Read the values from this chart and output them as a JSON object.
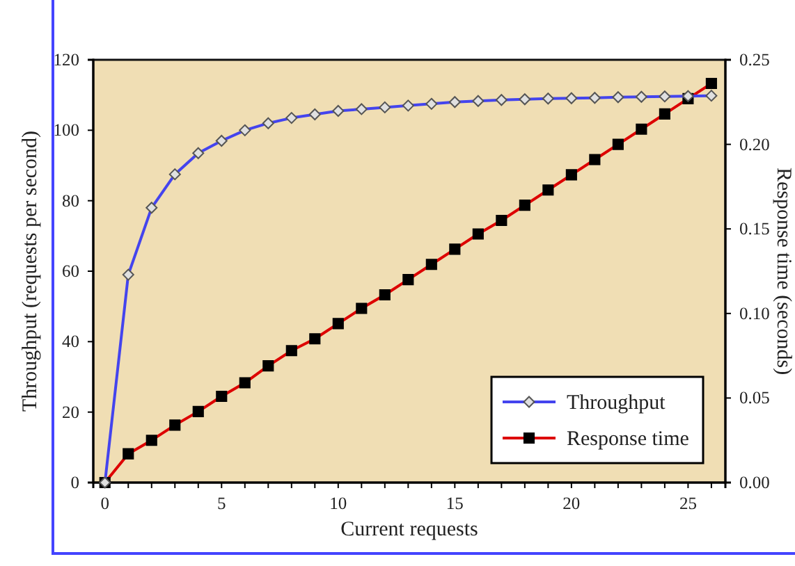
{
  "chart_data": {
    "type": "line",
    "xlabel": "Current requests",
    "ylabel": "Throughput (requests per second)",
    "y2label": "Response time (seconds)",
    "x": [
      0,
      1,
      2,
      3,
      4,
      5,
      6,
      7,
      8,
      9,
      10,
      11,
      12,
      13,
      14,
      15,
      16,
      17,
      18,
      19,
      20,
      21,
      22,
      23,
      24,
      25,
      26
    ],
    "series": [
      {
        "name": "Throughput",
        "color": "#4444ee",
        "marker": "diamond",
        "values": [
          0,
          59,
          78,
          87.5,
          93.5,
          97,
          100,
          102,
          103.5,
          104.5,
          105.5,
          106,
          106.5,
          107,
          107.5,
          108,
          108.3,
          108.6,
          108.8,
          109,
          109.1,
          109.2,
          109.4,
          109.5,
          109.6,
          109.7,
          109.8
        ]
      },
      {
        "name": "Response time",
        "color": "#dd0000",
        "marker": "square",
        "axis": "y2",
        "values": [
          0,
          0.017,
          0.025,
          0.034,
          0.042,
          0.051,
          0.059,
          0.069,
          0.078,
          0.085,
          0.094,
          0.103,
          0.111,
          0.12,
          0.129,
          0.138,
          0.147,
          0.155,
          0.164,
          0.173,
          0.182,
          0.191,
          0.2,
          0.209,
          0.218,
          0.227,
          0.236
        ]
      }
    ],
    "xlim": [
      -0.5,
      26.6
    ],
    "xticks": [
      0,
      {
        "value": 1,
        "label": null
      },
      {
        "value": 2,
        "label": null
      },
      {
        "value": 3,
        "label": null
      },
      {
        "value": 4,
        "label": null
      },
      5,
      {
        "value": 6,
        "label": null
      },
      {
        "value": 7,
        "label": null
      },
      {
        "value": 8,
        "label": null
      },
      {
        "value": 9,
        "label": null
      },
      10,
      {
        "value": 11,
        "label": null
      },
      {
        "value": 12,
        "label": null
      },
      {
        "value": 13,
        "label": null
      },
      {
        "value": 14,
        "label": null
      },
      15,
      {
        "value": 16,
        "label": null
      },
      {
        "value": 17,
        "label": null
      },
      {
        "value": 18,
        "label": null
      },
      {
        "value": 19,
        "label": null
      },
      20,
      {
        "value": 21,
        "label": null
      },
      {
        "value": 22,
        "label": null
      },
      {
        "value": 23,
        "label": null
      },
      {
        "value": 24,
        "label": null
      },
      25,
      {
        "value": 26,
        "label": null
      }
    ],
    "ylim": [
      0,
      120
    ],
    "yticks": [
      0,
      20,
      40,
      60,
      80,
      100,
      120
    ],
    "y2lim": [
      0,
      0.25
    ],
    "y2ticks": [
      {
        "value": 0,
        "label": "0.00"
      },
      {
        "value": 0.05,
        "label": "0.05"
      },
      {
        "value": 0.1,
        "label": "0.10"
      },
      {
        "value": 0.15,
        "label": "0.15"
      },
      {
        "value": 0.2,
        "label": "0.20"
      },
      {
        "value": 0.25,
        "label": "0.25"
      }
    ],
    "legend": "bottom right",
    "line_style": "solid"
  }
}
